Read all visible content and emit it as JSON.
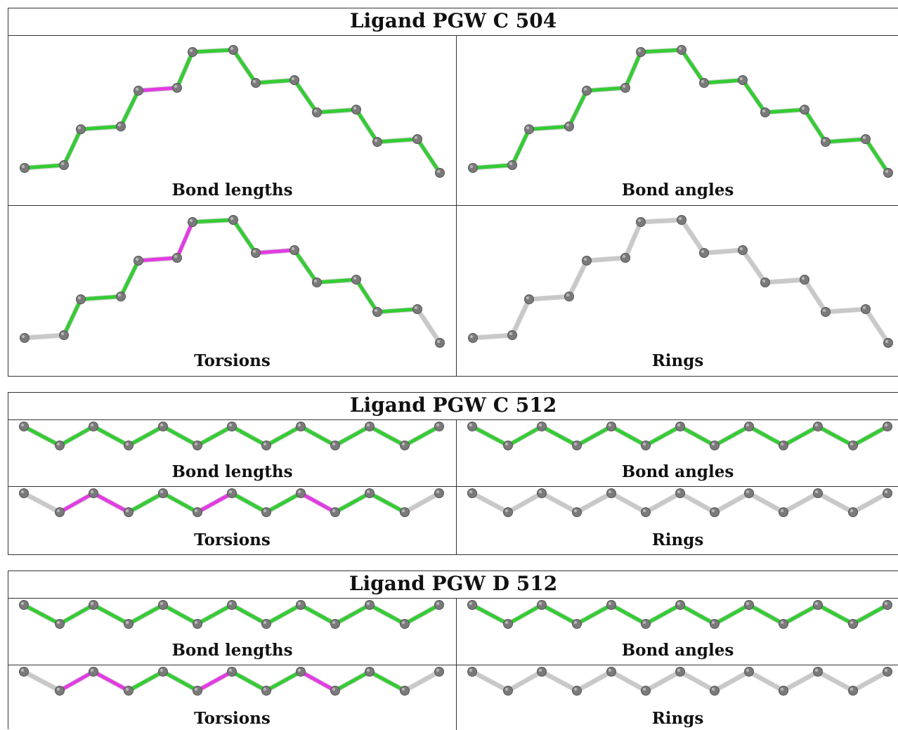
{
  "colors": {
    "ok": "#34cc34",
    "outlier": "#e33be3",
    "unassessed": "#c8c8c8",
    "atom": "#7a7a7a"
  },
  "ligands": [
    {
      "title": "Ligand PGW C 504",
      "panels": [
        {
          "label": "Bond lengths",
          "bonds": [
            "ok",
            "ok",
            "ok",
            "ok",
            "outlier",
            "ok",
            "ok",
            "ok",
            "ok",
            "ok",
            "ok"
          ]
        },
        {
          "label": "Bond angles",
          "bonds": [
            "ok",
            "ok",
            "ok",
            "ok",
            "ok",
            "ok",
            "ok",
            "ok",
            "ok",
            "ok",
            "ok"
          ]
        },
        {
          "label": "Torsions",
          "bonds": [
            "unassessed",
            "ok",
            "ok",
            "ok",
            "outlier",
            "outlier",
            "ok",
            "ok",
            "outlier",
            "ok",
            "ok",
            "ok",
            "ok",
            "unassessed"
          ]
        },
        {
          "label": "Rings",
          "bonds": [
            "unassessed",
            "unassessed",
            "unassessed",
            "unassessed",
            "unassessed",
            "unassessed",
            "unassessed",
            "unassessed",
            "unassessed",
            "unassessed",
            "unassessed",
            "unassessed",
            "unassessed",
            "unassessed"
          ]
        }
      ]
    },
    {
      "title": "Ligand PGW C 512",
      "panels": [
        {
          "label": "Bond lengths",
          "bonds": [
            "ok",
            "ok",
            "ok",
            "ok",
            "ok",
            "ok",
            "ok",
            "ok",
            "ok",
            "ok",
            "ok",
            "ok"
          ]
        },
        {
          "label": "Bond angles",
          "bonds": [
            "ok",
            "ok",
            "ok",
            "ok",
            "ok",
            "ok",
            "ok",
            "ok",
            "ok",
            "ok",
            "ok",
            "ok"
          ]
        },
        {
          "label": "Torsions",
          "bonds": [
            "unassessed",
            "outlier",
            "outlier",
            "ok",
            "ok",
            "outlier",
            "ok",
            "ok",
            "outlier",
            "ok",
            "ok",
            "unassessed",
            "unassessed"
          ]
        },
        {
          "label": "Rings",
          "bonds": [
            "unassessed",
            "unassessed",
            "unassessed",
            "unassessed",
            "unassessed",
            "unassessed",
            "unassessed",
            "unassessed",
            "unassessed",
            "unassessed",
            "unassessed",
            "unassessed",
            "unassessed"
          ]
        }
      ]
    },
    {
      "title": "Ligand PGW D 512",
      "panels": [
        {
          "label": "Bond lengths",
          "bonds": [
            "ok",
            "ok",
            "ok",
            "ok",
            "ok",
            "ok",
            "ok",
            "ok",
            "ok",
            "ok",
            "ok",
            "ok"
          ]
        },
        {
          "label": "Bond angles",
          "bonds": [
            "ok",
            "ok",
            "ok",
            "ok",
            "ok",
            "ok",
            "ok",
            "ok",
            "ok",
            "ok",
            "ok",
            "ok"
          ]
        },
        {
          "label": "Torsions",
          "bonds": [
            "unassessed",
            "outlier",
            "outlier",
            "ok",
            "ok",
            "outlier",
            "ok",
            "ok",
            "outlier",
            "ok",
            "ok",
            "unassessed",
            "unassessed"
          ]
        },
        {
          "label": "Rings",
          "bonds": [
            "unassessed",
            "unassessed",
            "unassessed",
            "unassessed",
            "unassessed",
            "unassessed",
            "unassessed",
            "unassessed",
            "unassessed",
            "unassessed",
            "unassessed",
            "unassessed",
            "unassessed"
          ]
        }
      ]
    }
  ]
}
